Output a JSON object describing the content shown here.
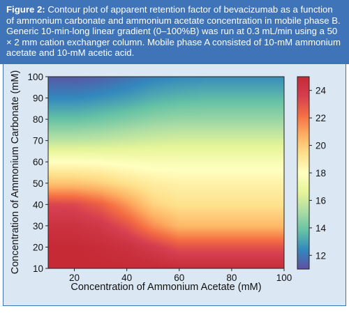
{
  "caption": {
    "label": "Figure 2:",
    "text": " Contour plot of apparent retention factor of bevacizumab as a function of ammonium carbonate and ammonium acetate concentration in mobile phase B. Generic 10-min-long linear gradient (0–100%B) was run at 0.3 mL/min using a 50 × 2 mm cation exchanger column. Mobile phase A consisted of 10-mM ammonium acetate and 10-mM acetic acid."
  },
  "colors": {
    "caption_background": "#3f74b9",
    "panel_background": "#dbe8f4",
    "colormap": "Spectral_r (blue low → red high)"
  },
  "chart_data": {
    "type": "heatmap",
    "title": "",
    "xlabel": "Concentration of Ammonium Acetate (mM)",
    "ylabel": "Concentration of Ammonium Carbonate (mM)",
    "xlim": [
      10,
      100
    ],
    "ylim": [
      10,
      100
    ],
    "x_ticks": [
      20,
      40,
      60,
      80,
      100
    ],
    "y_ticks": [
      10,
      20,
      30,
      40,
      50,
      60,
      70,
      80,
      90,
      100
    ],
    "colorbar": {
      "label": "",
      "range": [
        11,
        25
      ],
      "ticks": [
        12,
        14,
        16,
        18,
        20,
        22,
        24
      ]
    },
    "x": [
      10,
      20,
      30,
      40,
      50,
      60,
      70,
      80,
      90,
      100
    ],
    "y": [
      10,
      20,
      30,
      40,
      50,
      60,
      70,
      80,
      90,
      100
    ],
    "z": [
      [
        25.0,
        25.0,
        25.0,
        25.0,
        25.0,
        24.8,
        24.8,
        24.8,
        24.8,
        24.8
      ],
      [
        25.0,
        25.0,
        24.8,
        24.5,
        23.8,
        23.0,
        23.0,
        23.0,
        23.0,
        23.0
      ],
      [
        24.4,
        24.4,
        24.0,
        23.0,
        21.5,
        20.5,
        20.5,
        20.5,
        20.5,
        20.5
      ],
      [
        23.4,
        23.3,
        22.6,
        21.3,
        19.8,
        19.3,
        19.3,
        19.3,
        19.3,
        19.3
      ],
      [
        20.2,
        20.2,
        19.9,
        19.3,
        18.8,
        18.6,
        18.6,
        18.6,
        18.6,
        18.6
      ],
      [
        18.0,
        18.0,
        17.9,
        17.7,
        17.6,
        17.6,
        17.6,
        17.6,
        17.6,
        17.6
      ],
      [
        15.6,
        15.6,
        15.7,
        15.9,
        16.1,
        16.2,
        16.2,
        16.2,
        16.2,
        16.2
      ],
      [
        13.8,
        13.8,
        14.0,
        14.3,
        14.6,
        14.8,
        14.8,
        14.8,
        14.8,
        14.8
      ],
      [
        12.4,
        12.4,
        12.6,
        12.9,
        13.3,
        13.5,
        13.6,
        13.6,
        13.6,
        13.6
      ],
      [
        11.2,
        11.2,
        11.4,
        11.8,
        12.2,
        12.4,
        12.5,
        12.5,
        12.5,
        12.5
      ]
    ]
  }
}
